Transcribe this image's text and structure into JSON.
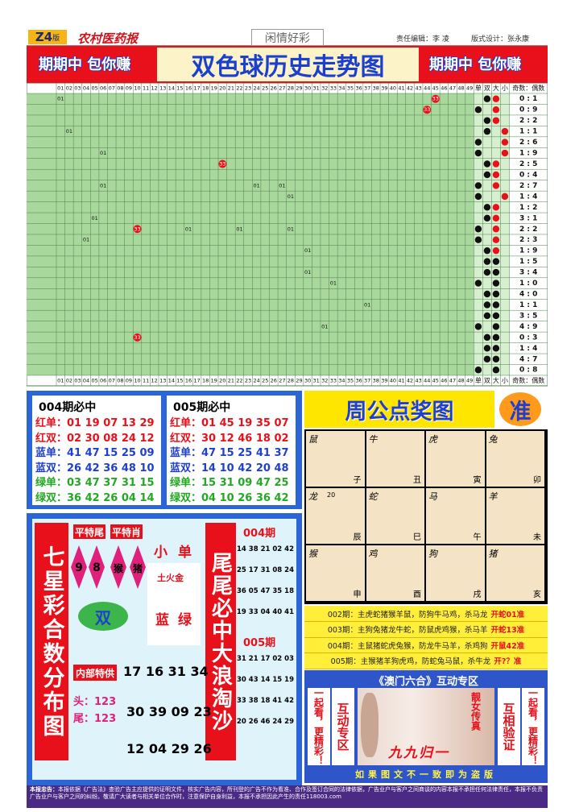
{
  "header": {
    "edition": "Z4",
    "edition_suffix": "版",
    "paper": "农村医药报",
    "column": "闲情好彩",
    "editor": "责任编辑：李 凌",
    "designer": "版式设计：张永康"
  },
  "banner": {
    "slogan_left": "期期中 包你赚",
    "title": "双色球历史走势图",
    "slogan_right": "期期中 包你赚"
  },
  "trend": {
    "columns": [
      "01",
      "02",
      "03",
      "04",
      "05",
      "06",
      "07",
      "08",
      "09",
      "10",
      "11",
      "12",
      "13",
      "14",
      "15",
      "16",
      "17",
      "18",
      "19",
      "20",
      "21",
      "22",
      "23",
      "24",
      "25",
      "26",
      "27",
      "28",
      "29",
      "30",
      "31",
      "32",
      "33",
      "34",
      "35",
      "36",
      "37",
      "38",
      "39",
      "40",
      "41",
      "42",
      "43",
      "44",
      "45",
      "46",
      "47",
      "48",
      "49"
    ],
    "flag_columns": [
      "单",
      "双",
      "大",
      "小"
    ],
    "ratio_header": "奇数：偶数",
    "rows": [
      {
        "balls": [
          {
            "at": "01",
            "label": "01"
          },
          {
            "at": "45",
            "label": "33",
            "color": "#e8101a"
          }
        ],
        "flags": [
          {
            "at": "双",
            "color": "#111"
          },
          {
            "at": "大",
            "color": "#e8101a"
          }
        ],
        "ratio": "0 : 1"
      },
      {
        "balls": [
          {
            "at": "44",
            "label": "33",
            "color": "#e8101a"
          }
        ],
        "flags": [
          {
            "at": "单",
            "color": "#111"
          },
          {
            "at": "大",
            "color": "#e8101a"
          }
        ],
        "ratio": "0 : 9"
      },
      {
        "balls": [],
        "flags": [
          {
            "at": "双",
            "color": "#111"
          },
          {
            "at": "大",
            "color": "#e8101a"
          }
        ],
        "ratio": "2 : 2"
      },
      {
        "balls": [
          {
            "at": "02",
            "label": "01"
          }
        ],
        "flags": [
          {
            "at": "双",
            "color": "#111"
          },
          {
            "at": "小",
            "color": "#e8101a"
          }
        ],
        "ratio": "1 : 1"
      },
      {
        "balls": [],
        "flags": [
          {
            "at": "单",
            "color": "#111"
          },
          {
            "at": "小",
            "color": "#e8101a"
          }
        ],
        "ratio": "2 : 6"
      },
      {
        "balls": [
          {
            "at": "06",
            "label": "01"
          }
        ],
        "flags": [
          {
            "at": "单",
            "color": "#111"
          },
          {
            "at": "小",
            "color": "#e8101a"
          }
        ],
        "ratio": "1 : 9"
      },
      {
        "balls": [
          {
            "at": "20",
            "label": "33",
            "color": "#e8101a"
          }
        ],
        "flags": [
          {
            "at": "双",
            "color": "#111"
          },
          {
            "at": "大",
            "color": "#e8101a"
          }
        ],
        "ratio": "2 : 5"
      },
      {
        "balls": [],
        "flags": [
          {
            "at": "双",
            "color": "#111"
          },
          {
            "at": "大",
            "color": "#e8101a"
          }
        ],
        "ratio": "0 : 4"
      },
      {
        "balls": [
          {
            "at": "06",
            "label": "01"
          },
          {
            "at": "24",
            "label": "01"
          },
          {
            "at": "27",
            "label": "01"
          }
        ],
        "flags": [
          {
            "at": "单",
            "color": "#111"
          },
          {
            "at": "大",
            "color": "#e8101a"
          }
        ],
        "ratio": "2 : 7"
      },
      {
        "balls": [
          {
            "at": "28",
            "label": "01"
          }
        ],
        "flags": [
          {
            "at": "单",
            "color": "#111"
          },
          {
            "at": "小",
            "color": "#e8101a"
          }
        ],
        "ratio": "1 : 4"
      },
      {
        "balls": [],
        "flags": [
          {
            "at": "双",
            "color": "#111"
          },
          {
            "at": "大",
            "color": "#e8101a"
          }
        ],
        "ratio": "1 : 2"
      },
      {
        "balls": [
          {
            "at": "05",
            "label": "01"
          }
        ],
        "flags": [
          {
            "at": "双",
            "color": "#111"
          },
          {
            "at": "大",
            "color": "#e8101a"
          }
        ],
        "ratio": "3 : 1"
      },
      {
        "balls": [
          {
            "at": "10",
            "label": "33",
            "color": "#e8101a"
          },
          {
            "at": "16",
            "label": "01"
          },
          {
            "at": "22",
            "label": "01"
          },
          {
            "at": "28",
            "label": "01"
          }
        ],
        "flags": [
          {
            "at": "单",
            "color": "#111"
          },
          {
            "at": "大",
            "color": "#e8101a"
          }
        ],
        "ratio": "2 : 2"
      },
      {
        "balls": [
          {
            "at": "04",
            "label": "01"
          }
        ],
        "flags": [
          {
            "at": "单",
            "color": "#111"
          },
          {
            "at": "大",
            "color": "#e8101a"
          }
        ],
        "ratio": "2 : 3"
      },
      {
        "balls": [
          {
            "at": "30",
            "label": "01"
          }
        ],
        "flags": [
          {
            "at": "双",
            "color": "#111"
          },
          {
            "at": "大",
            "color": "#e8101a"
          }
        ],
        "ratio": "1 : 9"
      },
      {
        "balls": [],
        "flags": [
          {
            "at": "双",
            "color": "#111"
          },
          {
            "at": "大",
            "color": "#111"
          }
        ],
        "ratio": "1 : 5"
      },
      {
        "balls": [
          {
            "at": "30",
            "label": "01"
          }
        ],
        "flags": [
          {
            "at": "双",
            "color": "#111"
          },
          {
            "at": "大",
            "color": "#111"
          }
        ],
        "ratio": "3 : 4"
      },
      {
        "balls": [
          {
            "at": "33",
            "label": "01"
          }
        ],
        "flags": [
          {
            "at": "单",
            "color": "#111"
          },
          {
            "at": "大",
            "color": "#111"
          }
        ],
        "ratio": "1 : 0"
      },
      {
        "balls": [],
        "flags": [
          {
            "at": "双",
            "color": "#111"
          },
          {
            "at": "大",
            "color": "#111"
          }
        ],
        "ratio": "4 : 0"
      },
      {
        "balls": [
          {
            "at": "37",
            "label": "01"
          }
        ],
        "flags": [
          {
            "at": "双",
            "color": "#111"
          },
          {
            "at": "大",
            "color": "#111"
          }
        ],
        "ratio": "1 : 1"
      },
      {
        "balls": [],
        "flags": [
          {
            "at": "双",
            "color": "#111"
          },
          {
            "at": "大",
            "color": "#111"
          }
        ],
        "ratio": "3 : 5"
      },
      {
        "balls": [
          {
            "at": "32",
            "label": "01"
          }
        ],
        "flags": [
          {
            "at": "单",
            "color": "#111"
          },
          {
            "at": "大",
            "color": "#111"
          }
        ],
        "ratio": "4 : 9"
      },
      {
        "balls": [
          {
            "at": "10",
            "label": "33",
            "color": "#e8101a"
          }
        ],
        "flags": [
          {
            "at": "双",
            "color": "#111"
          },
          {
            "at": "大",
            "color": "#111"
          }
        ],
        "ratio": "0 : 3"
      },
      {
        "balls": [],
        "flags": [
          {
            "at": "双",
            "color": "#111"
          },
          {
            "at": "大",
            "color": "#111"
          }
        ],
        "ratio": "1 : 4"
      },
      {
        "balls": [],
        "flags": [
          {
            "at": "双",
            "color": "#111"
          },
          {
            "at": "大",
            "color": "#111"
          }
        ],
        "ratio": "4 : 7"
      },
      {
        "balls": [],
        "flags": [
          {
            "at": "单",
            "color": "#111"
          },
          {
            "at": "大",
            "color": "#111"
          }
        ],
        "ratio": "0 : 8"
      }
    ]
  },
  "picks": [
    {
      "title": "004期必中",
      "rows": [
        {
          "label": "红单：",
          "numbers": "01 19 07 13 29",
          "color": "#e8101a"
        },
        {
          "label": "红双：",
          "numbers": "02 30 08 24 12",
          "color": "#e8101a"
        },
        {
          "label": "蓝单：",
          "numbers": "41 47 15 25 09",
          "color": "#1f3fd0"
        },
        {
          "label": "蓝双：",
          "numbers": "26 42 36 48 10",
          "color": "#1f3fd0"
        },
        {
          "label": "绿单：",
          "numbers": "03 47 37 31 15",
          "color": "#22a822"
        },
        {
          "label": "绿双：",
          "numbers": "36 42 26 04 14",
          "color": "#22a822"
        }
      ]
    },
    {
      "title": "005期必中",
      "rows": [
        {
          "label": "红单：",
          "numbers": "01 45 19 35 07",
          "color": "#e8101a"
        },
        {
          "label": "红双：",
          "numbers": "30 12 46 18 02",
          "color": "#e8101a"
        },
        {
          "label": "蓝单：",
          "numbers": "47 15 25 41 37",
          "color": "#1f3fd0"
        },
        {
          "label": "蓝双：",
          "numbers": "14 10 42 20 48",
          "color": "#1f3fd0"
        },
        {
          "label": "绿单：",
          "numbers": "15 31 09 47 25",
          "color": "#22a822"
        },
        {
          "label": "绿双：",
          "numbers": "04 10 26 36 42",
          "color": "#22a822"
        }
      ]
    }
  ],
  "seven_star": {
    "left_title": "七星彩合数分布图",
    "right_title": "尾尾必中大浪淘沙",
    "tail_label": "平特尾",
    "zodiac_label": "平特肖",
    "tails": [
      "9",
      "8"
    ],
    "zodiacs": [
      "猴",
      "猪"
    ],
    "size": "小",
    "parity": "单",
    "elements": "土火金",
    "parity_pick": "双",
    "colors": [
      "蓝",
      "绿"
    ],
    "inside_label": "内部特供",
    "inside_numbers": "17 16 31 34",
    "head": "头：123",
    "tail": "尾：123",
    "numbers_a": "30 39 09 23",
    "numbers_b": "12 04 29 26",
    "periods": [
      {
        "title": "004期",
        "rows": [
          "14 38 21 02 42",
          "25 17 31 08 24",
          "36 05 47 35 18",
          "19 33 04 40 41"
        ]
      },
      {
        "title": "005期",
        "rows": [
          "31 21 17 02 03",
          "30 43 14 15 19",
          "33 38 18 41 42",
          "20 26 46 24 29"
        ]
      }
    ]
  },
  "zhougong": {
    "title": "周公点奖图",
    "badge": "准",
    "cells": [
      {
        "animal": "鼠",
        "branch": "子"
      },
      {
        "animal": "牛",
        "branch": "丑"
      },
      {
        "animal": "虎",
        "branch": "寅"
      },
      {
        "animal": "兔",
        "branch": "卯"
      },
      {
        "animal": "龙",
        "branch": "辰",
        "note": "20"
      },
      {
        "animal": "蛇",
        "branch": "巳"
      },
      {
        "animal": "马",
        "branch": "午"
      },
      {
        "animal": "羊",
        "branch": "未"
      },
      {
        "animal": "猴",
        "branch": "申"
      },
      {
        "animal": "鸡",
        "branch": "酉"
      },
      {
        "animal": "狗",
        "branch": "戌"
      },
      {
        "animal": "猪",
        "branch": "亥"
      }
    ],
    "lines": [
      {
        "text": "002期：主虎蛇猪猴羊鼠，防狗牛马鸡，杀马龙",
        "result": "开蛇01准"
      },
      {
        "text": "003期：主狗兔猪龙牛蛇，防鼠虎鸡猴，杀马羊",
        "result": "开蛇13准"
      },
      {
        "text": "004期：主鼠猪蛇虎兔猴，防龙牛马羊，杀鸡狗",
        "result": "开鼠42准"
      },
      {
        "text": "005期：主猴猪羊狗虎鸡，防蛇兔马鼠，杀牛龙",
        "result": "开?？准"
      }
    ]
  },
  "ad": {
    "title": "《澳门六合》互动专区",
    "left_slogan": "一起看，更精彩！",
    "zone": "互动专区",
    "photo_caption": "靓女传真",
    "signature": "九九归一",
    "verify": "互相验证",
    "right_slogan": "一起看，更精彩！",
    "warning": "如果图文不一致即为盗版"
  },
  "footer": {
    "label": "本报忠告：",
    "text": "本报依据《广告法》查验广告主应提供的证明文件，核实广告内容，所刊登的广告不作为看准、合作及签订合同的法律依据，广告业户与客户之间商谈的内容本报不承担任何法律责任，本报不负责广告业户与客户之间的纠纷。敬请广大读者与相关单位合作时，注意保护自身利益，本报不承担因此产生的责任118003.com"
  }
}
